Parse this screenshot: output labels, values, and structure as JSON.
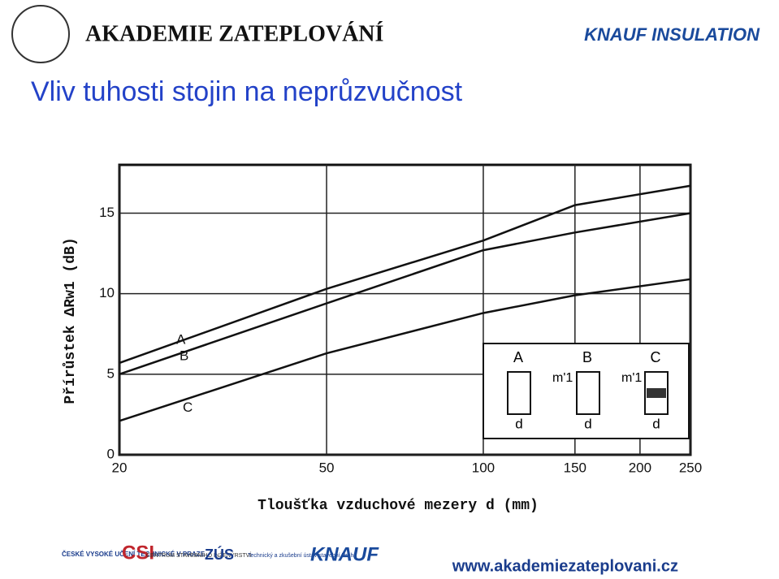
{
  "header": {
    "brand": "AKADEMIE ZATEPLOVÁNÍ",
    "logo": "KNAUF INSULATION",
    "title": "Vliv tuhosti stojin na neprůzvučnost"
  },
  "chart_data": {
    "type": "line",
    "xlabel": "Tloušťka vzduchové mezery d (mm)",
    "ylabel": "Přírůstek ΔRw1 (dB)",
    "x": [
      20,
      50,
      100,
      150,
      250
    ],
    "series": [
      {
        "name": "A",
        "color": "#111111",
        "values": [
          5.7,
          10.3,
          13.3,
          15.5,
          16.7
        ]
      },
      {
        "name": "B",
        "color": "#111111",
        "values": [
          5.0,
          9.4,
          12.7,
          13.8,
          15.0
        ]
      },
      {
        "name": "C",
        "color": "#111111",
        "values": [
          2.1,
          6.3,
          8.8,
          9.9,
          10.9
        ]
      }
    ],
    "xscale": "log",
    "xlim": [
      20,
      250
    ],
    "xticks": [
      20,
      50,
      100,
      150,
      200,
      250
    ],
    "ylim": [
      0,
      18
    ],
    "yticks": [
      0,
      5,
      10,
      15
    ],
    "grid": true,
    "inset": {
      "labels": [
        "A",
        "B",
        "C"
      ],
      "mass": "m'1",
      "gap": "d"
    }
  },
  "footer": {
    "logos": [
      "ČESKÉ VYSOKÉ UČENÍ TECHNICKÉ V PRAZE",
      "CSI",
      "CENTRUM STAVEBNÍHO INŽENÝRSTVÍ",
      "ZÚS",
      "Technický a zkušební ústav stavební Praha",
      "KNAUF"
    ],
    "url": "www.akademiezateplovani.cz"
  }
}
